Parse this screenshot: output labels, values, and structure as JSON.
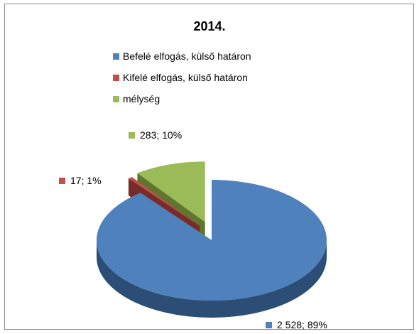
{
  "chart_data": {
    "type": "pie",
    "title": "2014.",
    "style": "3d-exploded",
    "legend_position": "top",
    "categories": [
      "Befelé elfogás, külső határon",
      "Kifelé elfogás, külső határon",
      "mélység"
    ],
    "values": [
      2528,
      17,
      283
    ],
    "percent_labels": [
      "89%",
      "1%",
      "10%"
    ],
    "data_labels": [
      "2 528; 89%",
      "17; 1%",
      "283; 10%"
    ],
    "colors": [
      "#4f81bd",
      "#c0504d",
      "#9bbb59"
    ],
    "side_colors": [
      "#2c4d75",
      "#772c2a",
      "#5f7530"
    ]
  }
}
